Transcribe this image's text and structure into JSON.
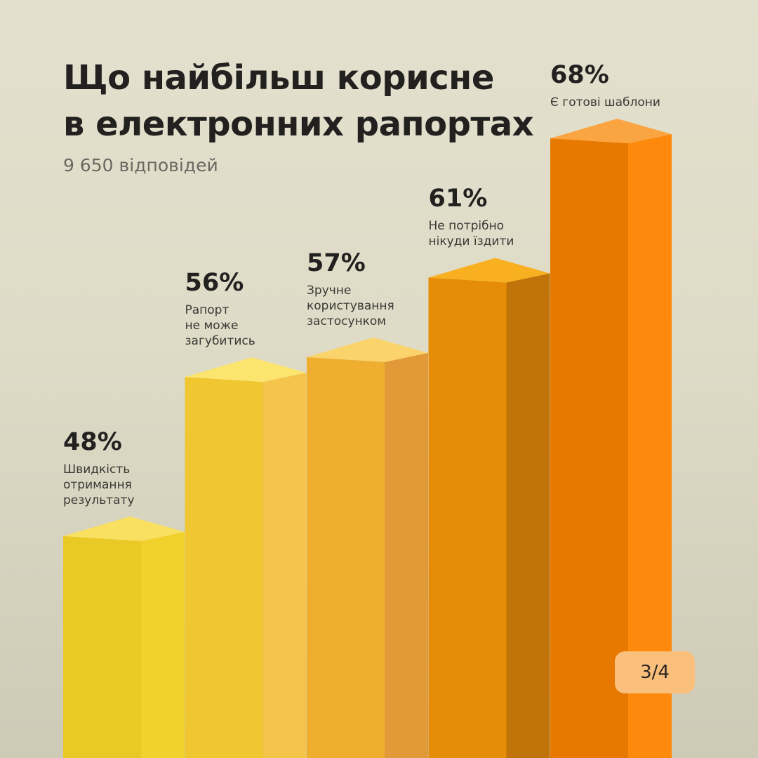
{
  "header": {
    "title_line1": "Що найбільш корисне",
    "title_line2": "в електронних рапортах",
    "subtitle": "9 650 відповідей"
  },
  "pagination": {
    "label": "3/4"
  },
  "chart_data": {
    "type": "bar",
    "title": "Що найбільш корисне в електронних рапортах",
    "subtitle": "9 650 відповідей",
    "categories": [
      "Швидкість отримання результату",
      "Рапорт не може загубитись",
      "Зручне користування застосунком",
      "Не потрібно нікуди їздити",
      "Є готові шаблони"
    ],
    "category_lines": [
      "Швидкість\nотримання\nрезультату",
      "Рапорт\nне може\nзагубитись",
      "Зручне\nкористування\nзастосунком",
      "Не потрібно\nнікуди їздити",
      "Є готові шаблони"
    ],
    "values": [
      48,
      56,
      57,
      61,
      68
    ],
    "value_labels": [
      "48%",
      "56%",
      "57%",
      "61%",
      "68%"
    ],
    "unit": "%",
    "colors": {
      "front": [
        "#e8c926",
        "#f0c631",
        "#efae30",
        "#e58d07",
        "#e77800"
      ],
      "top": [
        "#f9e060",
        "#fbe56f",
        "#fbd36b",
        "#f9b020",
        "#fba542"
      ],
      "side": [
        "#f1d12b",
        "#f4c44b",
        "#e29a38",
        "#bf7308",
        "#fd8a0d"
      ]
    },
    "grid": false,
    "legend": "none"
  }
}
